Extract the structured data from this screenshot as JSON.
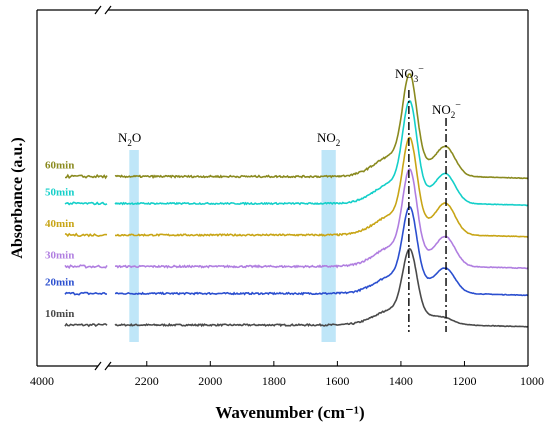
{
  "chart_data": {
    "type": "line",
    "xlabel": "Wavenumber (cm⁻¹)",
    "ylabel": "Absorbance (a.u.)",
    "x_ticks": [
      4000,
      2200,
      2000,
      1800,
      1600,
      1400,
      1200,
      1000
    ],
    "x_tick_labels": [
      "4000",
      "2200",
      "2000",
      "1800",
      "1600",
      "1400",
      "1200",
      "1000"
    ],
    "x_axis_break": [
      3800,
      2300
    ],
    "xlim": [
      4000,
      1000
    ],
    "x_reversed": true,
    "y_ticks_shown": false,
    "offset_traces": true,
    "series": [
      {
        "name": "10min",
        "color": "#4a4a4a",
        "baseline": 0.0,
        "peak_1370": 0.7,
        "peak_1260": 0.05,
        "noise": 0.018
      },
      {
        "name": "20min",
        "color": "#2b4fcf",
        "baseline": 0.35,
        "peak_1370": 0.8,
        "peak_1260": 0.25,
        "noise": 0.018
      },
      {
        "name": "30min",
        "color": "#b07ee0",
        "baseline": 0.65,
        "peak_1370": 0.9,
        "peak_1260": 0.3,
        "noise": 0.02
      },
      {
        "name": "40min",
        "color": "#c8a516",
        "baseline": 1.0,
        "peak_1370": 0.9,
        "peak_1260": 0.32,
        "noise": 0.018
      },
      {
        "name": "50min",
        "color": "#14cfc9",
        "baseline": 1.35,
        "peak_1370": 0.95,
        "peak_1260": 0.3,
        "noise": 0.016
      },
      {
        "name": "60min",
        "color": "#8a8a1f",
        "baseline": 1.65,
        "peak_1370": 0.95,
        "peak_1260": 0.3,
        "noise": 0.02
      }
    ],
    "annotations": [
      {
        "label_main": "N",
        "label_sub": "2",
        "label_rest": "O",
        "x_range": [
          2255,
          2225
        ],
        "type": "shaded-band"
      },
      {
        "label_main": "NO",
        "label_sub": "2",
        "label_rest": "",
        "x_range": [
          1650,
          1605
        ],
        "type": "shaded-band"
      },
      {
        "label_main": "NO",
        "label_sub": "3",
        "label_sup": "−",
        "x": 1375,
        "type": "dash-dot-line"
      },
      {
        "label_main": "NO",
        "label_sub": "2",
        "label_sup": "−",
        "x": 1258,
        "type": "dash-dot-line"
      }
    ],
    "band_color": "#bfe6f8",
    "grid": false
  }
}
